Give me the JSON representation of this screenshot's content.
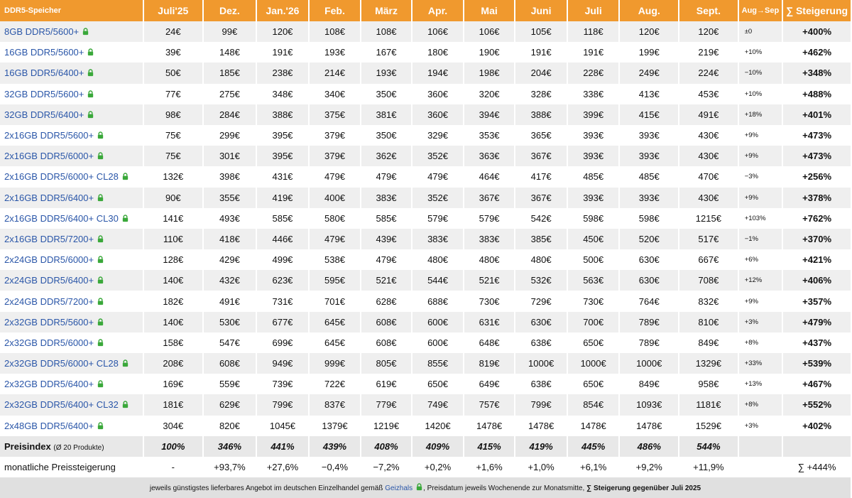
{
  "header": [
    "DDR5-Speicher",
    "Juli'25",
    "Dez.",
    "Jan.'26",
    "Feb.",
    "März",
    "Apr.",
    "Mai",
    "Juni",
    "Juli",
    "Aug.",
    "Sept.",
    "Aug→Sep",
    "∑ Steigerung"
  ],
  "rows": [
    {
      "name": "8GB DDR5/5600+",
      "v": [
        "24€",
        "99€",
        "120€",
        "108€",
        "108€",
        "106€",
        "106€",
        "105€",
        "118€",
        "120€",
        "120€"
      ],
      "d": "±0",
      "s": "+400%"
    },
    {
      "name": "16GB DDR5/5600+",
      "v": [
        "39€",
        "148€",
        "191€",
        "193€",
        "167€",
        "180€",
        "190€",
        "191€",
        "191€",
        "199€",
        "219€"
      ],
      "d": "+10%",
      "s": "+462%"
    },
    {
      "name": "16GB DDR5/6400+",
      "v": [
        "50€",
        "185€",
        "238€",
        "214€",
        "193€",
        "194€",
        "198€",
        "204€",
        "228€",
        "249€",
        "224€"
      ],
      "d": "−10%",
      "s": "+348%"
    },
    {
      "name": "32GB DDR5/5600+",
      "v": [
        "77€",
        "275€",
        "348€",
        "340€",
        "350€",
        "360€",
        "320€",
        "328€",
        "338€",
        "413€",
        "453€"
      ],
      "d": "+10%",
      "s": "+488%"
    },
    {
      "name": "32GB DDR5/6400+",
      "v": [
        "98€",
        "284€",
        "388€",
        "375€",
        "381€",
        "360€",
        "394€",
        "388€",
        "399€",
        "415€",
        "491€"
      ],
      "d": "+18%",
      "s": "+401%"
    },
    {
      "name": "2x16GB DDR5/5600+",
      "v": [
        "75€",
        "299€",
        "395€",
        "379€",
        "350€",
        "329€",
        "353€",
        "365€",
        "393€",
        "393€",
        "430€"
      ],
      "d": "+9%",
      "s": "+473%"
    },
    {
      "name": "2x16GB DDR5/6000+",
      "v": [
        "75€",
        "301€",
        "395€",
        "379€",
        "362€",
        "352€",
        "363€",
        "367€",
        "393€",
        "393€",
        "430€"
      ],
      "d": "+9%",
      "s": "+473%"
    },
    {
      "name": "2x16GB DDR5/6000+ CL28",
      "v": [
        "132€",
        "398€",
        "431€",
        "479€",
        "479€",
        "479€",
        "464€",
        "417€",
        "485€",
        "485€",
        "470€"
      ],
      "d": "−3%",
      "s": "+256%"
    },
    {
      "name": "2x16GB DDR5/6400+",
      "v": [
        "90€",
        "355€",
        "419€",
        "400€",
        "383€",
        "352€",
        "367€",
        "367€",
        "393€",
        "393€",
        "430€"
      ],
      "d": "+9%",
      "s": "+378%"
    },
    {
      "name": "2x16GB DDR5/6400+ CL30",
      "v": [
        "141€",
        "493€",
        "585€",
        "580€",
        "585€",
        "579€",
        "579€",
        "542€",
        "598€",
        "598€",
        "1215€"
      ],
      "d": "+103%",
      "s": "+762%"
    },
    {
      "name": "2x16GB DDR5/7200+",
      "v": [
        "110€",
        "418€",
        "446€",
        "479€",
        "439€",
        "383€",
        "383€",
        "385€",
        "450€",
        "520€",
        "517€"
      ],
      "d": "−1%",
      "s": "+370%"
    },
    {
      "name": "2x24GB DDR5/6000+",
      "v": [
        "128€",
        "429€",
        "499€",
        "538€",
        "479€",
        "480€",
        "480€",
        "480€",
        "500€",
        "630€",
        "667€"
      ],
      "d": "+6%",
      "s": "+421%"
    },
    {
      "name": "2x24GB DDR5/6400+",
      "v": [
        "140€",
        "432€",
        "623€",
        "595€",
        "521€",
        "544€",
        "521€",
        "532€",
        "563€",
        "630€",
        "708€"
      ],
      "d": "+12%",
      "s": "+406%"
    },
    {
      "name": "2x24GB DDR5/7200+",
      "v": [
        "182€",
        "491€",
        "731€",
        "701€",
        "628€",
        "688€",
        "730€",
        "729€",
        "730€",
        "764€",
        "832€"
      ],
      "d": "+9%",
      "s": "+357%"
    },
    {
      "name": "2x32GB DDR5/5600+",
      "v": [
        "140€",
        "530€",
        "677€",
        "645€",
        "608€",
        "600€",
        "631€",
        "630€",
        "700€",
        "789€",
        "810€"
      ],
      "d": "+3%",
      "s": "+479%"
    },
    {
      "name": "2x32GB DDR5/6000+",
      "v": [
        "158€",
        "547€",
        "699€",
        "645€",
        "608€",
        "600€",
        "648€",
        "638€",
        "650€",
        "789€",
        "849€"
      ],
      "d": "+8%",
      "s": "+437%"
    },
    {
      "name": "2x32GB DDR5/6000+ CL28",
      "v": [
        "208€",
        "608€",
        "949€",
        "999€",
        "805€",
        "855€",
        "819€",
        "1000€",
        "1000€",
        "1000€",
        "1329€"
      ],
      "d": "+33%",
      "s": "+539%"
    },
    {
      "name": "2x32GB DDR5/6400+",
      "v": [
        "169€",
        "559€",
        "739€",
        "722€",
        "619€",
        "650€",
        "649€",
        "638€",
        "650€",
        "849€",
        "958€"
      ],
      "d": "+13%",
      "s": "+467%"
    },
    {
      "name": "2x32GB DDR5/6400+ CL32",
      "v": [
        "181€",
        "629€",
        "799€",
        "837€",
        "779€",
        "749€",
        "757€",
        "799€",
        "854€",
        "1093€",
        "1181€"
      ],
      "d": "+8%",
      "s": "+552%"
    },
    {
      "name": "2x48GB DDR5/6400+",
      "v": [
        "304€",
        "820€",
        "1045€",
        "1379€",
        "1219€",
        "1420€",
        "1478€",
        "1478€",
        "1478€",
        "1478€",
        "1529€"
      ],
      "d": "+3%",
      "s": "+402%"
    }
  ],
  "index": {
    "label": "Preisindex",
    "sub": "(Ø 20 Produkte)",
    "v": [
      "100%",
      "346%",
      "441%",
      "439%",
      "408%",
      "409%",
      "415%",
      "419%",
      "445%",
      "486%",
      "544%"
    ],
    "d": "",
    "s": ""
  },
  "monthly": {
    "label": "monatliche Preissteigerung",
    "v": [
      "-",
      "+93,7%",
      "+27,6%",
      "−0,4%",
      "−7,2%",
      "+0,2%",
      "+1,6%",
      "+1,0%",
      "+6,1%",
      "+9,2%",
      "+11,9%"
    ],
    "d": "",
    "s": "∑ +444%"
  },
  "footer": {
    "before": "jeweils günstigstes lieferbares Angebot im deutschen Einzelhandel gemäß ",
    "link": "Geizhals",
    "after": ", Preisdatum jeweils Wochenende zur Monatsmitte, ",
    "bold": "∑ Steigerung gegenüber Juli 2025"
  },
  "icons": {
    "lock": "lock-icon",
    "lock_color": "#3aa83a"
  },
  "colors": {
    "header_bg": "#f0992e",
    "link": "#2a56a8",
    "stripe": "#efefef"
  }
}
